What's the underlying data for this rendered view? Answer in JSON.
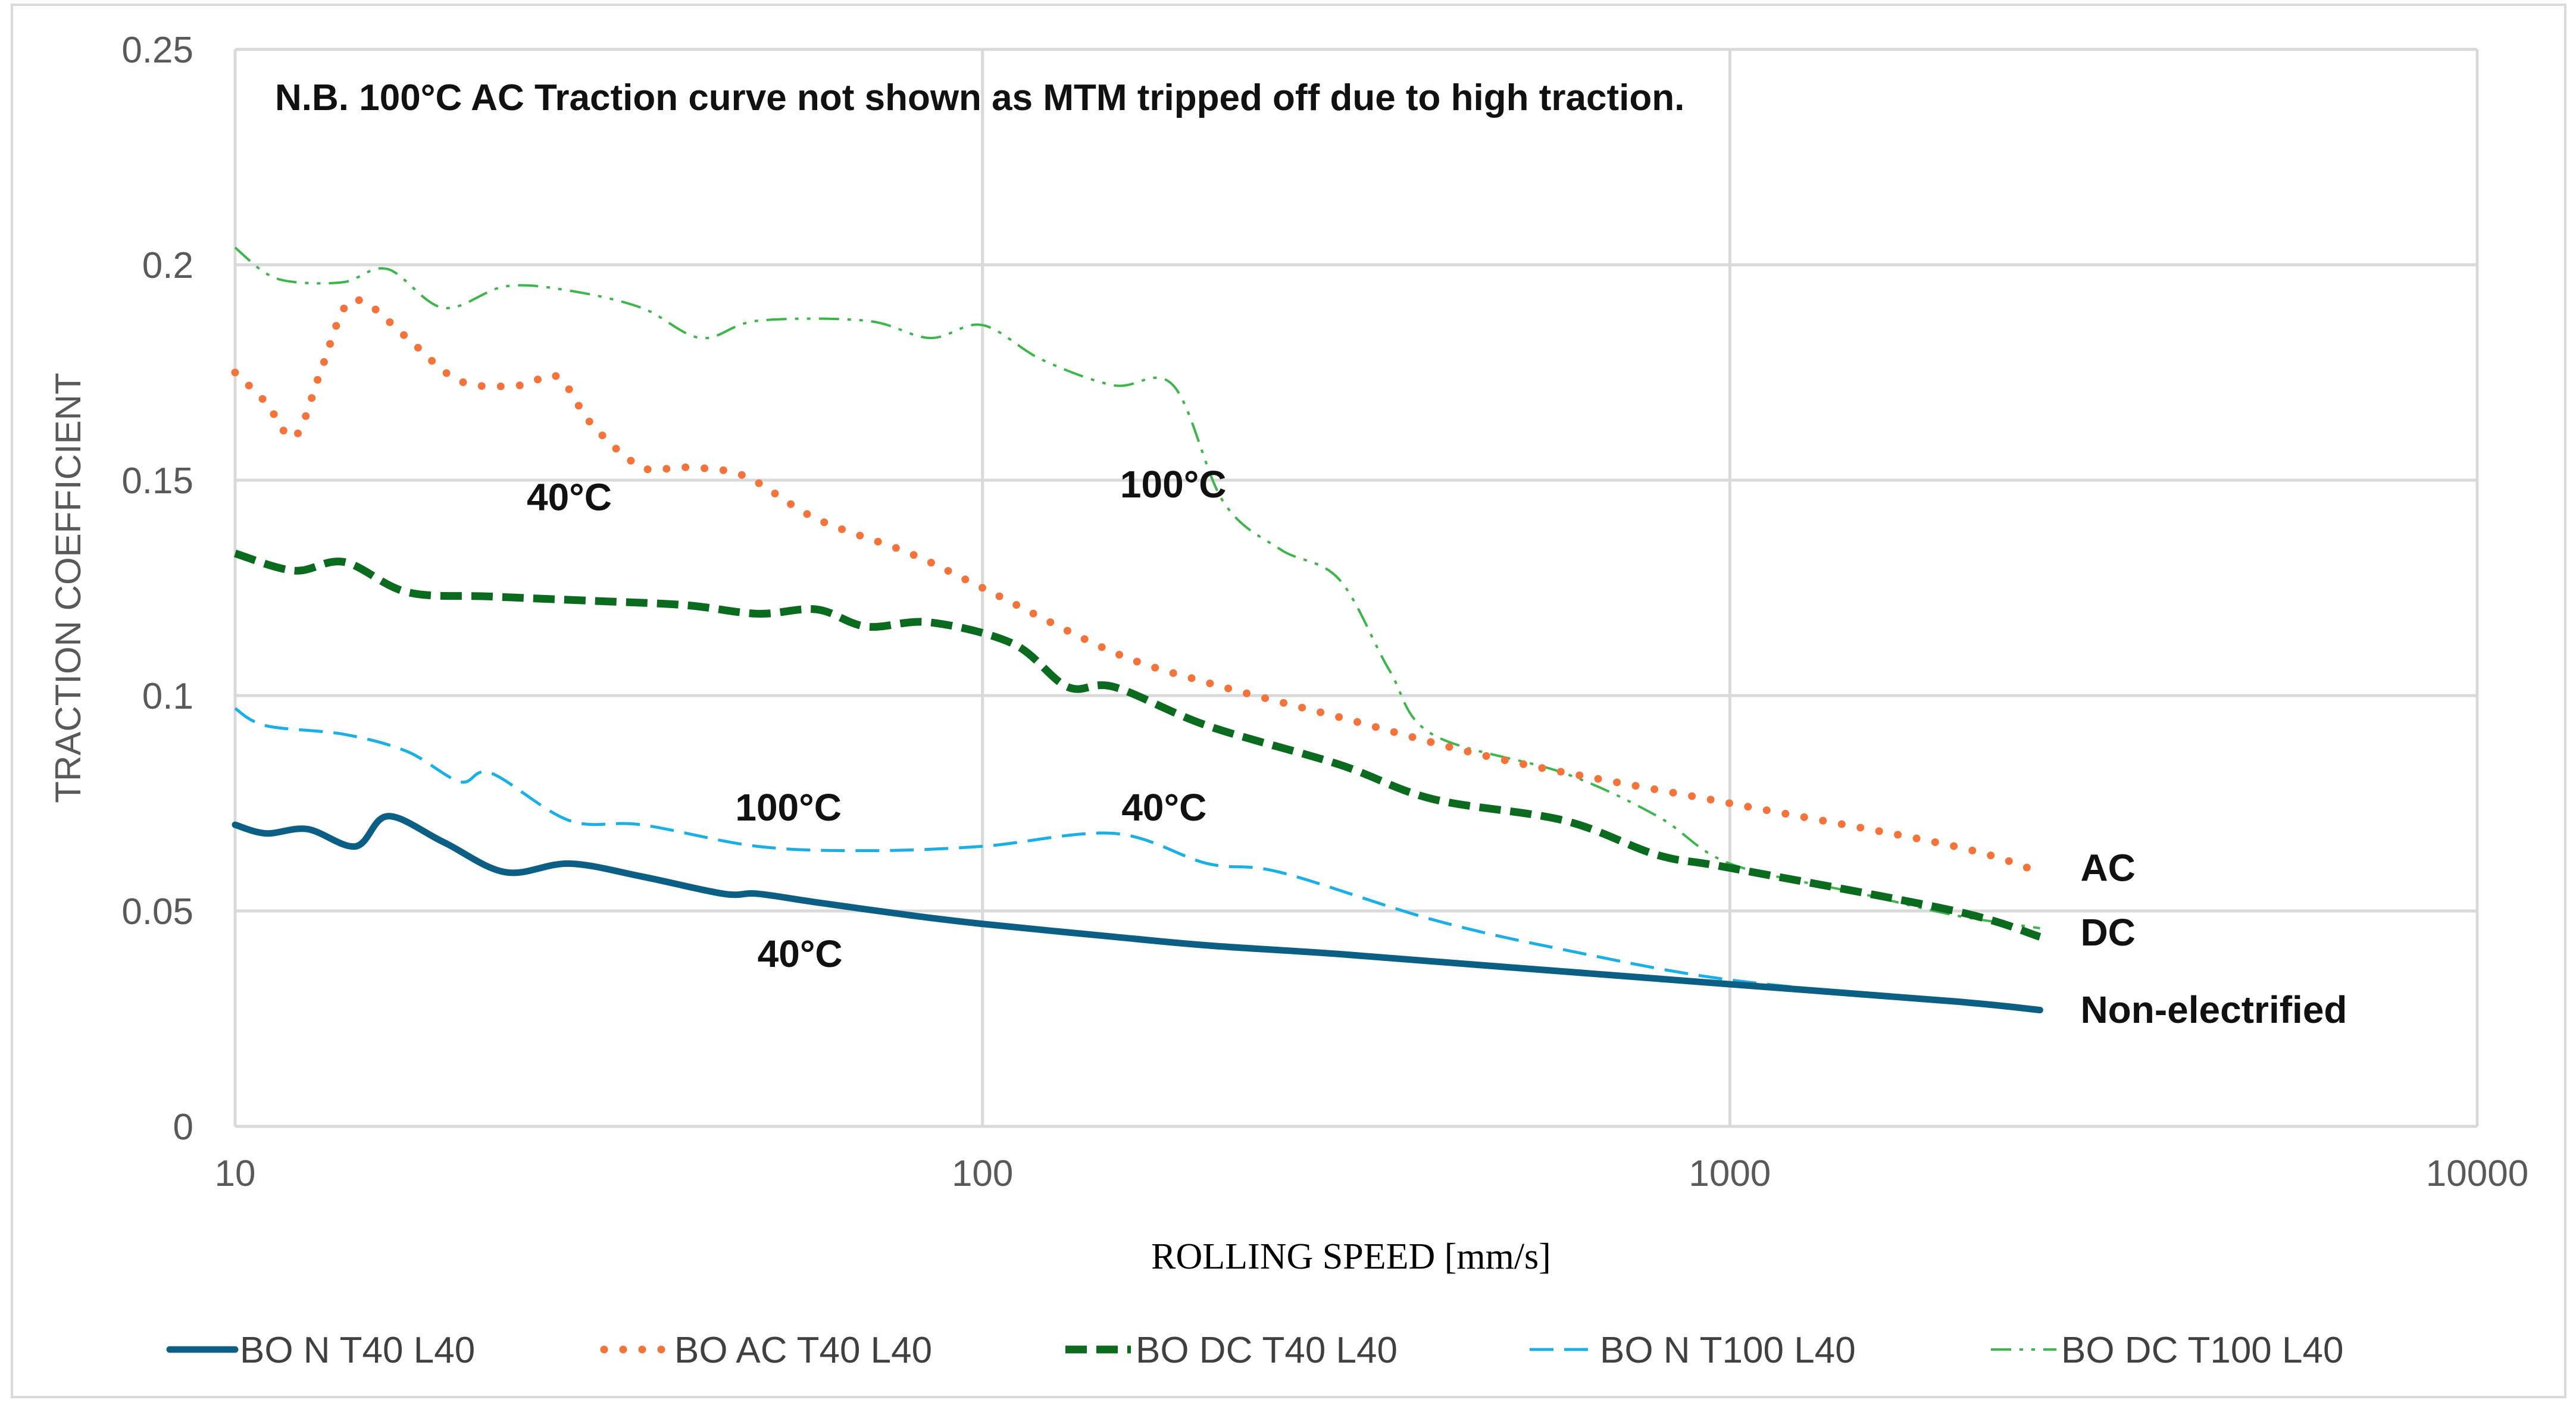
{
  "chart_data": {
    "type": "line",
    "title": "",
    "xlabel": "ROLLING SPEED [mm/s]",
    "ylabel": "TRACTION COEFFICIENT",
    "xscale": "log",
    "xlim": [
      10,
      10000
    ],
    "ylim": [
      0,
      0.25
    ],
    "xticks": [
      "10",
      "100",
      "1000",
      "10000"
    ],
    "xtick_values": [
      10,
      100,
      1000,
      10000
    ],
    "yticks": [
      "0",
      "0.05",
      "0.1",
      "0.15",
      "0.2",
      "0.25"
    ],
    "ytick_values": [
      0,
      0.05,
      0.1,
      0.15,
      0.2,
      0.25
    ],
    "grid": true,
    "legend_position": "bottom",
    "note": "N.B. 100°C AC Traction curve not shown as MTM tripped off due to high traction.",
    "annotations": [
      {
        "text": "40°C",
        "x": 28,
        "y": 0.143
      },
      {
        "text": "100°C",
        "x": 180,
        "y": 0.146
      },
      {
        "text": "100°C",
        "x": 55,
        "y": 0.071
      },
      {
        "text": "40°C",
        "x": 175,
        "y": 0.071
      },
      {
        "text": "40°C",
        "x": 57,
        "y": 0.037
      },
      {
        "text": "AC",
        "x": 3000,
        "y": 0.057
      },
      {
        "text": "DC",
        "x": 3000,
        "y": 0.042
      },
      {
        "text": "Non-electrified",
        "x": 3000,
        "y": 0.024
      }
    ],
    "series": [
      {
        "name": "BO N T40 L40",
        "color": "#0b5e84",
        "style": "solid",
        "x": [
          10,
          11,
          12.5,
          14.5,
          16,
          19,
          23,
          28,
          35,
          45,
          50,
          60,
          80,
          100,
          150,
          200,
          300,
          500,
          1000,
          2000,
          2600
        ],
        "y": [
          0.07,
          0.068,
          0.069,
          0.065,
          0.072,
          0.066,
          0.059,
          0.061,
          0.058,
          0.054,
          0.054,
          0.052,
          0.049,
          0.047,
          0.044,
          0.042,
          0.04,
          0.037,
          0.033,
          0.029,
          0.027
        ]
      },
      {
        "name": "BO AC T40 L40",
        "color": "#f4733a",
        "style": "dot",
        "x": [
          10,
          11,
          12,
          13,
          14,
          15,
          17,
          20,
          24,
          27,
          30,
          35,
          40,
          48,
          60,
          80,
          100,
          150,
          200,
          300,
          500,
          1000,
          2000,
          2600
        ],
        "y": [
          0.175,
          0.168,
          0.16,
          0.175,
          0.19,
          0.191,
          0.183,
          0.173,
          0.172,
          0.174,
          0.163,
          0.153,
          0.153,
          0.151,
          0.141,
          0.133,
          0.125,
          0.11,
          0.103,
          0.095,
          0.085,
          0.075,
          0.065,
          0.059
        ]
      },
      {
        "name": "BO DC T40 L40",
        "color": "#0a6b1f",
        "style": "dash",
        "x": [
          10,
          12,
          14,
          17,
          22,
          30,
          40,
          50,
          60,
          70,
          85,
          110,
          130,
          150,
          200,
          300,
          400,
          600,
          800,
          1000,
          2000,
          2600
        ],
        "y": [
          0.133,
          0.129,
          0.131,
          0.124,
          0.123,
          0.122,
          0.121,
          0.119,
          0.12,
          0.116,
          0.117,
          0.112,
          0.102,
          0.102,
          0.093,
          0.084,
          0.076,
          0.071,
          0.063,
          0.06,
          0.05,
          0.044
        ]
      },
      {
        "name": "BO N T100 L40",
        "color": "#1ab0e6",
        "style": "longdash",
        "x": [
          10,
          11,
          14,
          17,
          20,
          22,
          28,
          35,
          50,
          70,
          100,
          150,
          200,
          250,
          400,
          600,
          1000,
          2000,
          2600
        ],
        "y": [
          0.097,
          0.093,
          0.091,
          0.087,
          0.08,
          0.082,
          0.071,
          0.07,
          0.065,
          0.064,
          0.065,
          0.068,
          0.061,
          0.059,
          0.048,
          0.041,
          0.034,
          0.029,
          0.027
        ]
      },
      {
        "name": "BO DC T100 L40",
        "color": "#3cb54a",
        "style": "dashdotdot",
        "x": [
          10,
          11,
          12,
          14,
          16,
          19,
          23,
          28,
          35,
          42,
          50,
          70,
          85,
          100,
          120,
          150,
          180,
          210,
          250,
          300,
          350,
          400,
          600,
          800,
          1000,
          1500,
          2000,
          2600
        ],
        "y": [
          0.204,
          0.198,
          0.196,
          0.196,
          0.199,
          0.19,
          0.195,
          0.194,
          0.19,
          0.183,
          0.187,
          0.187,
          0.183,
          0.186,
          0.178,
          0.172,
          0.172,
          0.145,
          0.134,
          0.127,
          0.106,
          0.091,
          0.082,
          0.072,
          0.061,
          0.054,
          0.049,
          0.046
        ]
      }
    ]
  }
}
